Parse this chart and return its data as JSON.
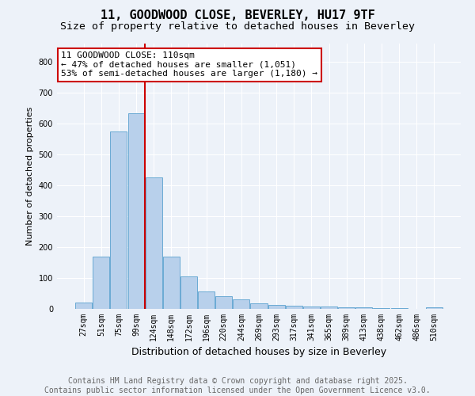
{
  "title": "11, GOODWOOD CLOSE, BEVERLEY, HU17 9TF",
  "subtitle": "Size of property relative to detached houses in Beverley",
  "xlabel": "Distribution of detached houses by size in Beverley",
  "ylabel": "Number of detached properties",
  "categories": [
    "27sqm",
    "51sqm",
    "75sqm",
    "99sqm",
    "124sqm",
    "148sqm",
    "172sqm",
    "196sqm",
    "220sqm",
    "244sqm",
    "269sqm",
    "293sqm",
    "317sqm",
    "341sqm",
    "365sqm",
    "389sqm",
    "413sqm",
    "438sqm",
    "462sqm",
    "486sqm",
    "510sqm"
  ],
  "values": [
    20,
    170,
    575,
    635,
    425,
    170,
    105,
    57,
    42,
    32,
    17,
    12,
    10,
    8,
    7,
    5,
    4,
    3,
    2,
    1,
    6
  ],
  "bar_color": "#b8d0eb",
  "bar_edge_color": "#6aaad4",
  "vline_color": "#cc0000",
  "vline_pos": 3.5,
  "annotation_text": "11 GOODWOOD CLOSE: 110sqm\n← 47% of detached houses are smaller (1,051)\n53% of semi-detached houses are larger (1,180) →",
  "annotation_box_facecolor": "#ffffff",
  "annotation_box_edgecolor": "#cc0000",
  "ylim": [
    0,
    860
  ],
  "yticks": [
    0,
    100,
    200,
    300,
    400,
    500,
    600,
    700,
    800
  ],
  "footer_text": "Contains HM Land Registry data © Crown copyright and database right 2025.\nContains public sector information licensed under the Open Government Licence v3.0.",
  "background_color": "#edf2f9",
  "grid_color": "#ffffff",
  "title_fontsize": 11,
  "subtitle_fontsize": 9.5,
  "ylabel_fontsize": 8,
  "xlabel_fontsize": 9,
  "tick_fontsize": 7,
  "annotation_fontsize": 8,
  "footer_fontsize": 7
}
